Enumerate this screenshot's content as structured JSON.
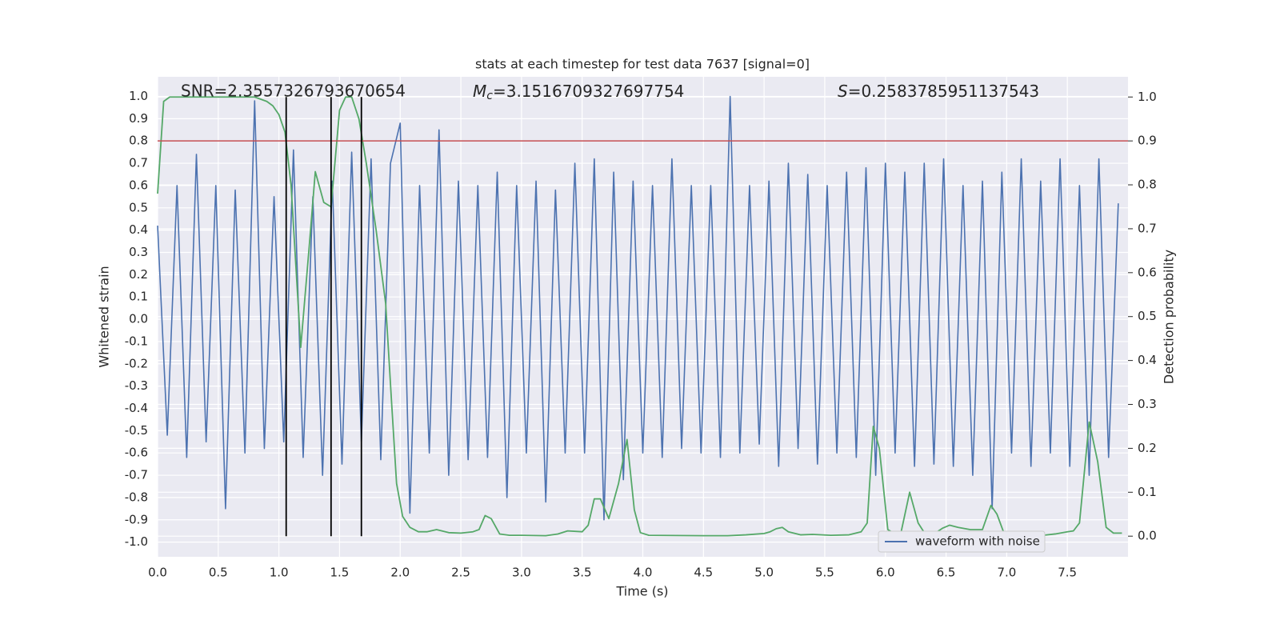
{
  "chart_data": {
    "type": "line",
    "title": "stats at each timestep for test data 7637 [signal=0]",
    "xlabel": "Time (s)",
    "ylabel": "Whitened strain",
    "y2label": "Detection probability",
    "annotations": [
      {
        "text": "SNR=2.3557326793670654"
      },
      {
        "symbol": "M",
        "subscript": "c",
        "text": "=3.1516709327697754"
      },
      {
        "symbol": "S",
        "text": "=0.2583785951137543"
      }
    ],
    "xlim": [
      0,
      8.0
    ],
    "xticks": [
      {
        "value": 0,
        "label": "0.0"
      },
      0.5,
      {
        "value": 1,
        "label": "1.0"
      },
      1.5,
      {
        "value": 2,
        "label": "2.0"
      },
      2.5,
      {
        "value": 3,
        "label": "3.0"
      },
      3.5,
      {
        "value": 4,
        "label": "4.0"
      },
      4.5,
      {
        "value": 5,
        "label": "5.0"
      },
      5.5,
      {
        "value": 6,
        "label": "6.0"
      },
      6.5,
      {
        "value": 7,
        "label": "7.0"
      },
      7.5
    ],
    "ylim": [
      -1.066,
      1.088
    ],
    "yticks": [
      {
        "value": -1,
        "label": "-1.0"
      },
      -0.9,
      -0.8,
      -0.7,
      -0.6,
      -0.5,
      -0.4,
      -0.3,
      -0.2,
      -0.1,
      {
        "value": 0,
        "label": "0.0"
      },
      0.1,
      0.2,
      0.3,
      0.4,
      0.5,
      0.6,
      0.7,
      0.8,
      0.9,
      {
        "value": 1,
        "label": "1.0"
      }
    ],
    "y2lim": [
      -0.047,
      1.046
    ],
    "y2ticks": [
      {
        "value": 0,
        "label": "0.0"
      },
      0.1,
      0.2,
      0.3,
      0.4,
      0.5,
      0.6,
      0.7,
      0.8,
      0.9,
      {
        "value": 1,
        "label": "1.0"
      }
    ],
    "grid": true,
    "legend": "lower right",
    "threshold": {
      "value": 0.9,
      "axis": "y2",
      "color": "#c44e52"
    },
    "vlines": {
      "x": [
        1.06,
        1.43,
        1.68
      ],
      "ymin": 0,
      "ymax": 1,
      "axis": "y2",
      "color": "#000000"
    },
    "series": [
      {
        "name": "waveform with noise",
        "color": "#4c72b0",
        "x": [
          0,
          0.08,
          0.16,
          0.24,
          0.32,
          0.4,
          0.48,
          0.56,
          0.64,
          0.72,
          0.8,
          0.88,
          0.96,
          1.04,
          1.12,
          1.2,
          1.28,
          1.36,
          1.44,
          1.52,
          1.6,
          1.68,
          1.76,
          1.84,
          1.92,
          2.0,
          2.08,
          2.16,
          2.24,
          2.32,
          2.4,
          2.48,
          2.56,
          2.64,
          2.72,
          2.8,
          2.88,
          2.96,
          3.04,
          3.12,
          3.2,
          3.28,
          3.36,
          3.44,
          3.52,
          3.6,
          3.68,
          3.76,
          3.84,
          3.92,
          4.0,
          4.08,
          4.16,
          4.24,
          4.32,
          4.4,
          4.48,
          4.56,
          4.64,
          4.72,
          4.8,
          4.88,
          4.96,
          5.04,
          5.12,
          5.2,
          5.28,
          5.36,
          5.44,
          5.52,
          5.6,
          5.68,
          5.76,
          5.84,
          5.92,
          6.0,
          6.08,
          6.16,
          6.24,
          6.32,
          6.4,
          6.48,
          6.56,
          6.64,
          6.72,
          6.8,
          6.88,
          6.96,
          7.04,
          7.12,
          7.2,
          7.28,
          7.36,
          7.44,
          7.52,
          7.6,
          7.68,
          7.76,
          7.84,
          7.92
        ],
        "values": [
          0.42,
          -0.52,
          0.6,
          -0.62,
          0.74,
          -0.55,
          0.6,
          -0.85,
          0.58,
          -0.6,
          0.98,
          -0.58,
          0.55,
          -0.55,
          0.76,
          -0.62,
          0.55,
          -0.7,
          0.62,
          -0.65,
          0.75,
          -0.55,
          0.72,
          -0.63,
          0.7,
          0.88,
          -0.87,
          0.6,
          -0.6,
          0.85,
          -0.7,
          0.62,
          -0.63,
          0.6,
          -0.62,
          0.66,
          -0.8,
          0.6,
          -0.6,
          0.62,
          -0.82,
          0.58,
          -0.6,
          0.7,
          -0.6,
          0.72,
          -0.9,
          0.66,
          -0.72,
          0.62,
          -0.6,
          0.6,
          -0.62,
          0.72,
          -0.58,
          0.6,
          -0.6,
          0.6,
          -0.62,
          1.0,
          -0.6,
          0.6,
          -0.56,
          0.62,
          -0.66,
          0.7,
          -0.58,
          0.65,
          -0.65,
          0.6,
          -0.6,
          0.66,
          -0.62,
          0.68,
          -0.7,
          0.7,
          -0.6,
          0.66,
          -0.66,
          0.7,
          -0.65,
          0.72,
          -0.66,
          0.6,
          -0.7,
          0.62,
          -0.85,
          0.66,
          -0.6,
          0.72,
          -0.66,
          0.62,
          -0.6,
          0.72,
          -0.66,
          0.6,
          -0.7,
          0.72,
          -0.62,
          0.52
        ]
      },
      {
        "color": "#55a868",
        "axis": "y2",
        "x": [
          0.0,
          0.05,
          0.1,
          0.2,
          0.4,
          0.6,
          0.8,
          0.9,
          0.95,
          1.0,
          1.05,
          1.1,
          1.18,
          1.25,
          1.3,
          1.37,
          1.43,
          1.5,
          1.55,
          1.6,
          1.66,
          1.72,
          1.8,
          1.88,
          1.93,
          1.97,
          2.02,
          2.08,
          2.15,
          2.22,
          2.3,
          2.4,
          2.5,
          2.6,
          2.65,
          2.7,
          2.75,
          2.82,
          2.9,
          3.0,
          3.2,
          3.3,
          3.38,
          3.5,
          3.55,
          3.6,
          3.65,
          3.72,
          3.8,
          3.87,
          3.93,
          3.98,
          4.05,
          4.5,
          4.7,
          4.85,
          5.0,
          5.05,
          5.1,
          5.15,
          5.2,
          5.3,
          5.4,
          5.55,
          5.7,
          5.8,
          5.85,
          5.9,
          5.95,
          6.02,
          6.08,
          6.13,
          6.2,
          6.27,
          6.33,
          6.4,
          6.47,
          6.53,
          6.6,
          6.7,
          6.8,
          6.87,
          6.92,
          6.98,
          7.05,
          7.15,
          7.3,
          7.4,
          7.5,
          7.55,
          7.6,
          7.68,
          7.75,
          7.82,
          7.88,
          7.95
        ],
        "values": [
          0.78,
          0.99,
          1.0,
          1.0,
          1.0,
          1.0,
          1.0,
          0.99,
          0.98,
          0.96,
          0.92,
          0.8,
          0.43,
          0.66,
          0.83,
          0.76,
          0.75,
          0.97,
          1.0,
          1.0,
          0.95,
          0.85,
          0.7,
          0.53,
          0.3,
          0.12,
          0.045,
          0.02,
          0.01,
          0.01,
          0.015,
          0.008,
          0.007,
          0.01,
          0.015,
          0.047,
          0.04,
          0.005,
          0.002,
          0.002,
          0.001,
          0.005,
          0.012,
          0.01,
          0.025,
          0.085,
          0.085,
          0.04,
          0.12,
          0.22,
          0.06,
          0.008,
          0.002,
          0.001,
          0.001,
          0.003,
          0.006,
          0.01,
          0.017,
          0.02,
          0.01,
          0.003,
          0.004,
          0.002,
          0.003,
          0.01,
          0.03,
          0.25,
          0.2,
          0.015,
          0.005,
          0.01,
          0.1,
          0.03,
          0.004,
          0.005,
          0.018,
          0.025,
          0.02,
          0.015,
          0.015,
          0.07,
          0.05,
          0.005,
          0.002,
          0.003,
          0.002,
          0.005,
          0.01,
          0.012,
          0.03,
          0.26,
          0.17,
          0.02,
          0.007,
          0.007
        ]
      }
    ]
  }
}
